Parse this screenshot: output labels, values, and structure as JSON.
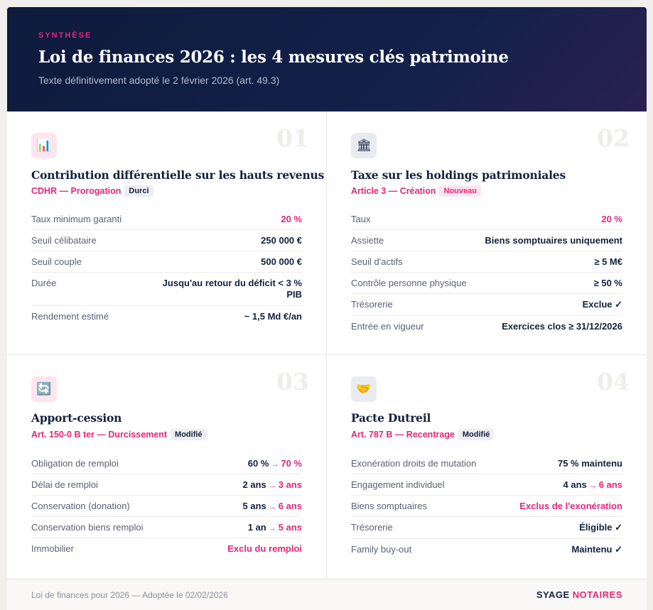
{
  "header": {
    "eyebrow": "SYNTHÈSE",
    "title": "Loi de finances 2026 : les 4 mesures clés patrimoine",
    "subtitle": "Texte définitivement adopté le 2 février 2026 (art. 49.3)"
  },
  "sections": [
    {
      "number": "01",
      "icon": "bar-chart-icon",
      "icon_glyph": "📊",
      "title": "Contribution différentielle sur les hauts revenus",
      "subtitle": "CDHR — Prorogation",
      "badge": "Durci",
      "rows": [
        {
          "label": "Taux minimum garanti",
          "value": "20 %"
        },
        {
          "label": "Seuil célibataire",
          "value": "250 000 €"
        },
        {
          "label": "Seuil couple",
          "value": "500 000 €"
        },
        {
          "label": "Durée",
          "value": "Jusqu'au retour du déficit < 3 % PIB"
        },
        {
          "label": "Rendement estimé",
          "value": "~ 1,5 Md €/an"
        }
      ]
    },
    {
      "number": "02",
      "icon": "bank-icon",
      "icon_glyph": "🏛",
      "title": "Taxe sur les holdings patrimoniales",
      "subtitle": "Article 3 — Création",
      "badge": "Nouveau",
      "rows": [
        {
          "label": "Taux",
          "value": "20 %"
        },
        {
          "label": "Assiette",
          "value": "Biens somptuaires uniquement"
        },
        {
          "label": "Seuil d'actifs",
          "value": "≥ 5 M€"
        },
        {
          "label": "Contrôle personne physique",
          "value": "≥ 50 %"
        },
        {
          "label": "Trésorerie",
          "value": "Exclue ✓"
        },
        {
          "label": "Entrée en vigueur",
          "value": "Exercices clos ≥ 31/12/2026"
        }
      ]
    },
    {
      "number": "03",
      "icon": "refresh-icon",
      "icon_glyph": "🔄",
      "title": "Apport-cession",
      "subtitle": "Art. 150-0 B ter — Durcissement",
      "badge": "Modifié",
      "rows": [
        {
          "label": "Obligation de remploi",
          "from": "60 %",
          "arrow": "→",
          "to": "70 %"
        },
        {
          "label": "Délai de remploi",
          "from": "2 ans",
          "arrow": "→",
          "to": "3 ans"
        },
        {
          "label": "Conservation (donation)",
          "from": "5 ans",
          "arrow": "→",
          "to": "6 ans"
        },
        {
          "label": "Conservation biens remploi",
          "from": "1 an",
          "arrow": "→",
          "to": "5 ans"
        },
        {
          "label": "Immobilier",
          "value": "Exclu du remploi"
        }
      ]
    },
    {
      "number": "04",
      "icon": "handshake-icon",
      "icon_glyph": "🤝",
      "title": "Pacte Dutreil",
      "subtitle": "Art. 787 B — Recentrage",
      "badge": "Modifié",
      "rows": [
        {
          "label": "Exonération droits de mutation",
          "value": "75 % maintenu"
        },
        {
          "label": "Engagement individuel",
          "from": "4 ans",
          "arrow": "→",
          "to": "6 ans"
        },
        {
          "label": "Biens somptuaires",
          "value": "Exclus de l'exonération"
        },
        {
          "label": "Trésorerie",
          "value": "Éligible ✓"
        },
        {
          "label": "Family buy-out",
          "value": "Maintenu ✓"
        }
      ]
    }
  ],
  "footer": {
    "text": "Loi de finances pour 2026 — Adoptée le 02/02/2026",
    "brand_part1": "SYAGE",
    "brand_part2": "NOTAIRES"
  },
  "colors": {
    "accent": "#e0287a",
    "navy": "#14213d"
  }
}
